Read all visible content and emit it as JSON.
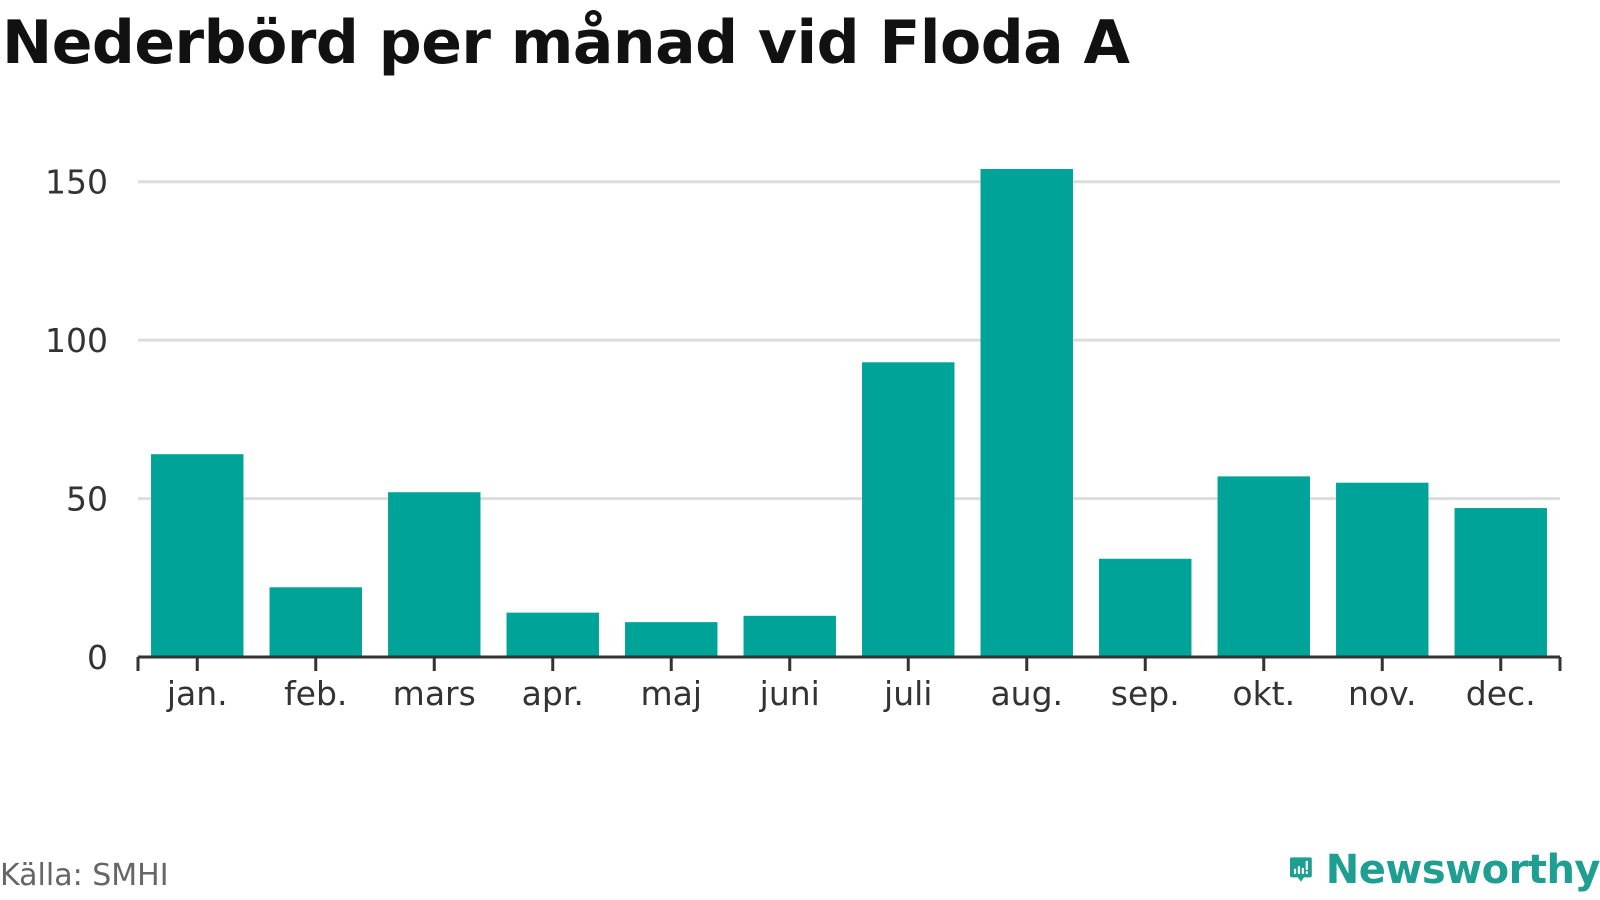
{
  "title": "Nederbörd per månad vid Floda A",
  "source": "Källa: SMHI",
  "brand": {
    "name": "Newsworthy",
    "icon": "newsworthy-logo-icon",
    "color": "#1f9e92"
  },
  "colors": {
    "bar": "#00a398",
    "grid": "#dddddd",
    "axis": "#333333"
  },
  "chart_data": {
    "type": "bar",
    "title": "Nederbörd per månad vid Floda A",
    "xlabel": "",
    "ylabel": "",
    "categories": [
      "jan.",
      "feb.",
      "mars",
      "apr.",
      "maj",
      "juni",
      "juli",
      "aug.",
      "sep.",
      "okt.",
      "nov.",
      "dec."
    ],
    "values": [
      64,
      22,
      52,
      14,
      11,
      13,
      93,
      154,
      31,
      57,
      55,
      47
    ],
    "ylim": [
      0,
      160
    ],
    "yticks": [
      0,
      50,
      100,
      150
    ],
    "grid": true,
    "legend": "none"
  }
}
